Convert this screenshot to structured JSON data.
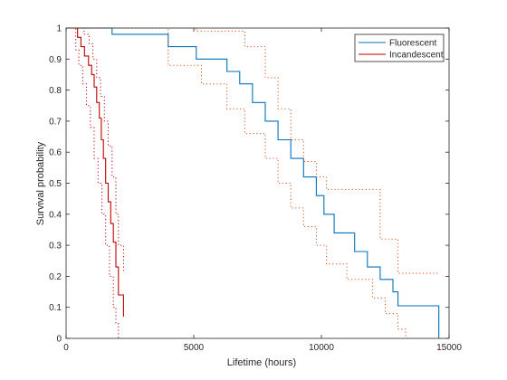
{
  "chart_data": {
    "type": "line",
    "title": "",
    "xlabel": "Lifetime (hours)",
    "ylabel": "Survival probability",
    "xlim": [
      0,
      15000
    ],
    "ylim": [
      0,
      1
    ],
    "xticks": [
      0,
      5000,
      10000,
      15000
    ],
    "xtick_labels": [
      "0",
      "5000",
      "10000",
      "15000"
    ],
    "yticks": [
      0,
      0.1,
      0.2,
      0.3,
      0.4,
      0.5,
      0.6,
      0.7,
      0.8,
      0.9,
      1
    ],
    "ytick_labels": [
      "0",
      "0.1",
      "0.2",
      "0.3",
      "0.4",
      "0.5",
      "0.6",
      "0.7",
      "0.8",
      "0.9",
      "1"
    ],
    "grid": false,
    "legend_position": "top-right",
    "series": [
      {
        "name": "Fluorescent",
        "color": "#0072BD",
        "style": "step-solid",
        "x": [
          0,
          1800,
          4000,
          5100,
          6300,
          6800,
          7300,
          7800,
          8300,
          8800,
          9300,
          9800,
          10100,
          10500,
          11300,
          11800,
          12300,
          12800,
          13000,
          14600
        ],
        "y": [
          1,
          0.98,
          0.94,
          0.9,
          0.86,
          0.82,
          0.76,
          0.7,
          0.64,
          0.58,
          0.52,
          0.46,
          0.4,
          0.34,
          0.28,
          0.23,
          0.19,
          0.15,
          0.105,
          0.0
        ]
      },
      {
        "name": "Fluorescent bound",
        "color": "#D95319",
        "style": "step-dotted",
        "x": [
          0,
          5100,
          7000,
          7800,
          8300,
          8800,
          9300,
          9800,
          10200,
          12300,
          13000,
          14600
        ],
        "y": [
          1,
          0.99,
          0.94,
          0.84,
          0.74,
          0.64,
          0.57,
          0.52,
          0.48,
          0.32,
          0.21,
          0.21
        ]
      },
      {
        "name": "Fluorescent bound",
        "color": "#D95319",
        "style": "step-dotted",
        "x": [
          0,
          4000,
          5300,
          6300,
          7000,
          7800,
          8300,
          8800,
          9300,
          9800,
          10200,
          11000,
          12000,
          12500,
          13000,
          13300
        ],
        "y": [
          1,
          0.88,
          0.82,
          0.74,
          0.66,
          0.58,
          0.5,
          0.42,
          0.36,
          0.3,
          0.24,
          0.19,
          0.13,
          0.08,
          0.03,
          0.0
        ]
      },
      {
        "name": "Incandescent",
        "color": "#C00000",
        "style": "step-solid",
        "x": [
          0,
          450,
          580,
          720,
          880,
          1000,
          1100,
          1200,
          1300,
          1380,
          1460,
          1550,
          1650,
          1750,
          1850,
          1950,
          2050,
          2250
        ],
        "y": [
          1,
          0.97,
          0.94,
          0.91,
          0.88,
          0.85,
          0.81,
          0.76,
          0.71,
          0.64,
          0.58,
          0.5,
          0.44,
          0.37,
          0.31,
          0.23,
          0.14,
          0.07
        ]
      },
      {
        "name": "Incandescent bound",
        "color": "#C00000",
        "style": "step-dotted",
        "x": [
          0,
          700,
          900,
          1050,
          1200,
          1350,
          1500,
          1650,
          1800,
          1950,
          2050,
          2250
        ],
        "y": [
          1,
          0.98,
          0.95,
          0.9,
          0.84,
          0.78,
          0.7,
          0.62,
          0.52,
          0.4,
          0.3,
          0.21
        ]
      },
      {
        "name": "Incandescent bound",
        "color": "#C00000",
        "style": "step-dotted",
        "x": [
          0,
          380,
          500,
          650,
          800,
          950,
          1100,
          1250,
          1400,
          1550,
          1700,
          1850,
          1950,
          2050
        ],
        "y": [
          1,
          0.93,
          0.88,
          0.82,
          0.75,
          0.68,
          0.58,
          0.5,
          0.4,
          0.3,
          0.2,
          0.1,
          0.05,
          0.0
        ]
      }
    ],
    "legend": [
      {
        "label": "Fluorescent",
        "color": "#0072BD"
      },
      {
        "label": "Incandescent",
        "color": "#C00000"
      }
    ]
  }
}
